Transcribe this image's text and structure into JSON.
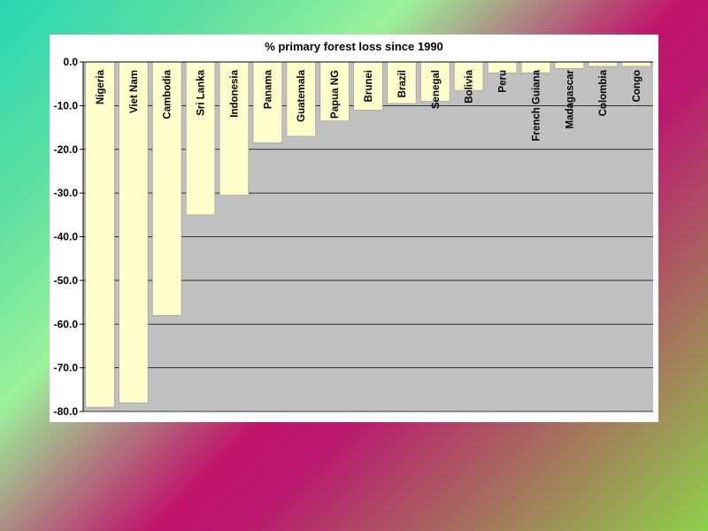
{
  "colors": {
    "plot_background": "#c0c0c0",
    "bar_fill": "#ffffcc",
    "bar_stroke": "#999999",
    "gridline": "#000000"
  },
  "chart_data": {
    "type": "bar",
    "title": "% primary forest loss since 1990",
    "categories": [
      "Nigeria",
      "Viet Nam",
      "Cambodia",
      "Sri Lanka",
      "Indonesia",
      "Panama",
      "Guatemala",
      "Papua NG",
      "Brunei",
      "Brazil",
      "Senegal",
      "Bolivia",
      "Peru",
      "French Guiana",
      "Madagascar",
      "Colombia",
      "Congo"
    ],
    "values": [
      -79.0,
      -78.0,
      -58.0,
      -35.0,
      -30.5,
      -18.5,
      -17.0,
      -13.5,
      -11.0,
      -9.5,
      -9.0,
      -6.5,
      -2.5,
      -2.5,
      -1.5,
      -1.0,
      -1.0
    ],
    "ylim": [
      -80,
      0
    ],
    "yticks": [
      0,
      -10,
      -20,
      -30,
      -40,
      -50,
      -60,
      -70,
      -80
    ],
    "ytick_labels": [
      "0.0",
      "-10.0",
      "-20.0",
      "-30.0",
      "-40.0",
      "-50.0",
      "-60.0",
      "-70.0",
      "-80.0"
    ],
    "xlabel": "",
    "ylabel": "",
    "grid": true,
    "legend": "none"
  }
}
